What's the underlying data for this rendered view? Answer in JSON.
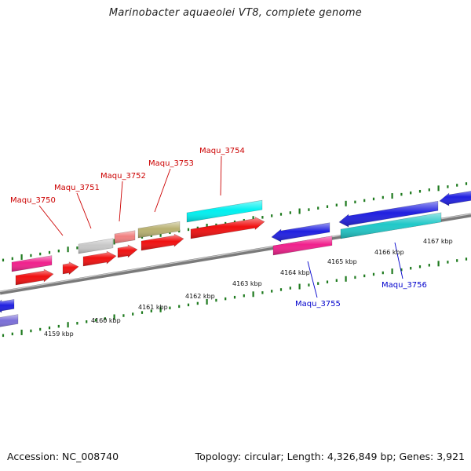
{
  "title": "Marinobacter aquaeolei VT8, complete genome",
  "footer": {
    "accession": "Accession: NC_008740",
    "summary": "Topology: circular; Length: 4,326,849 bp; Genes: 3,921"
  },
  "colors": {
    "forward_label": "#cc0000",
    "reverse_label": "#0000cc",
    "backbone": "#7a7a7a",
    "ruler": "#1e7a1e"
  },
  "ruler_labels": [
    "4159 kbp",
    "4160 kbp",
    "4161 kbp",
    "4162 kbp",
    "4163 kbp",
    "4164 kbp",
    "4165 kbp",
    "4166 kbp",
    "4167 kbp"
  ],
  "gene_labels": {
    "forward": [
      "Maqu_3750",
      "Maqu_3751",
      "Maqu_3752",
      "Maqu_3753",
      "Maqu_3754"
    ],
    "reverse": [
      "Maqu_3755",
      "Maqu_3756"
    ]
  },
  "features": [
    {
      "name": "cds-1",
      "strand": "-",
      "color": "#2020e0"
    },
    {
      "name": "cds-2",
      "strand": "-",
      "color": "#7b6fd8"
    },
    {
      "name": "gene-magenta-1",
      "strand": "+",
      "color": "#f0208c"
    },
    {
      "name": "cds-red-1",
      "strand": "+",
      "color": "#f01010"
    },
    {
      "name": "cds-red-2",
      "strand": "+",
      "color": "#f01010"
    },
    {
      "name": "gene-grey",
      "strand": "+",
      "color": "#c8c8c8"
    },
    {
      "name": "cds-red-3",
      "strand": "+",
      "color": "#f01010"
    },
    {
      "name": "gene-salmon",
      "strand": "+",
      "color": "#f08080"
    },
    {
      "name": "cds-red-4",
      "strand": "+",
      "color": "#f01010"
    },
    {
      "name": "gene-khaki",
      "strand": "+",
      "color": "#b8b070"
    },
    {
      "name": "cds-red-5",
      "strand": "+",
      "color": "#f01010"
    },
    {
      "name": "gene-cyan",
      "strand": "+",
      "color": "#00f0f0"
    },
    {
      "name": "cds-red-6",
      "strand": "+",
      "color": "#f01010"
    },
    {
      "name": "cds-blue-1",
      "strand": "-",
      "color": "#2020e0"
    },
    {
      "name": "gene-magenta-2",
      "strand": "-",
      "color": "#f0208c"
    },
    {
      "name": "cds-blue-2",
      "strand": "-",
      "color": "#2020e0"
    },
    {
      "name": "gene-teal",
      "strand": "-",
      "color": "#20c8c8"
    },
    {
      "name": "cds-blue-3",
      "strand": "-",
      "color": "#2020e0"
    }
  ]
}
